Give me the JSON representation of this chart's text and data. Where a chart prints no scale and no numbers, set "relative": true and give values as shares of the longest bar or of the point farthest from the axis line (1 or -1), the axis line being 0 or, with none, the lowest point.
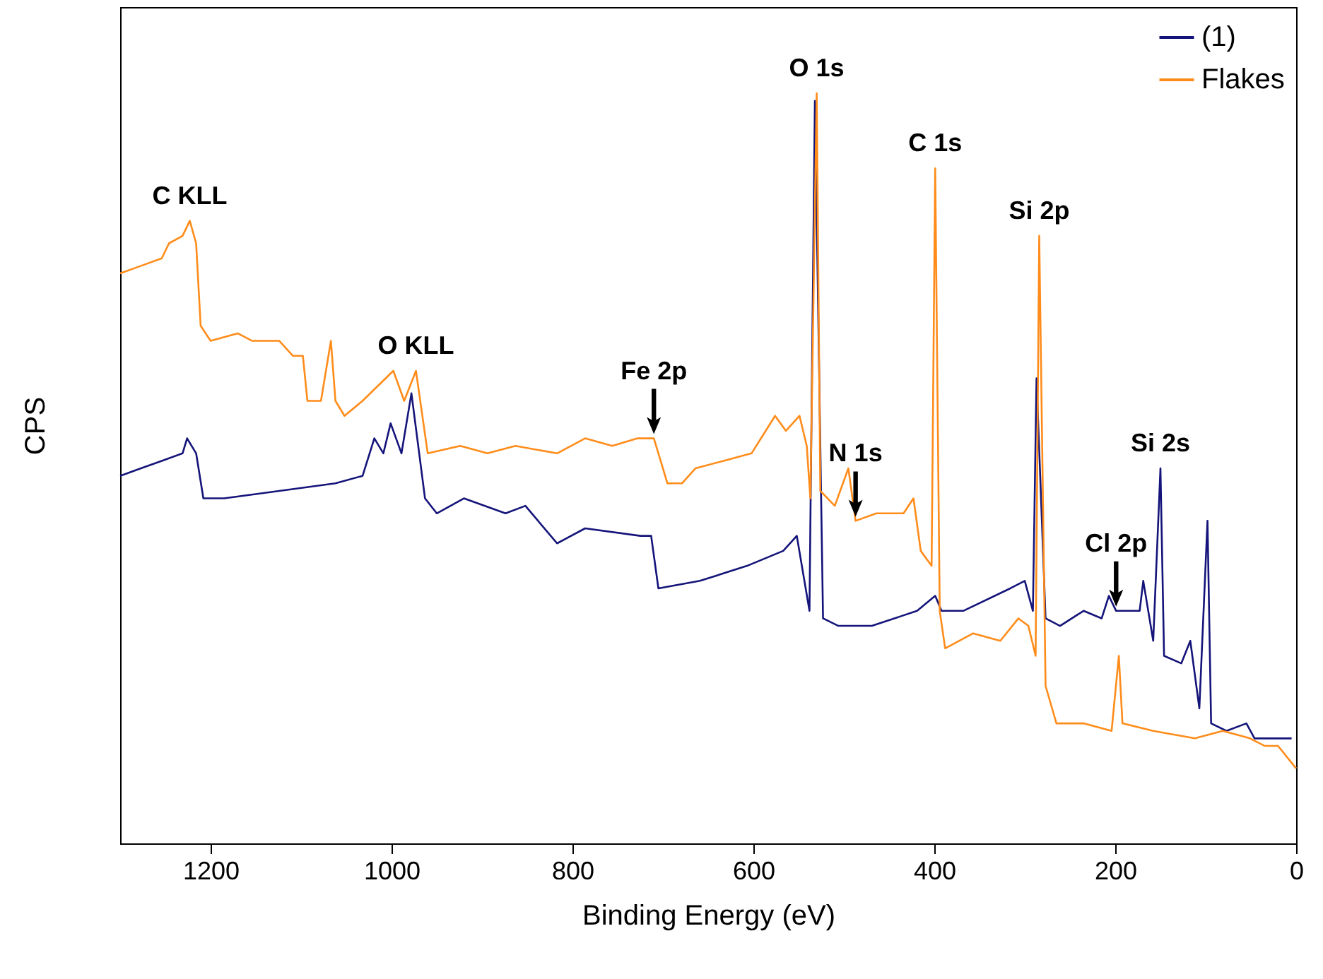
{
  "chart_data": {
    "type": "line",
    "relative": true,
    "xlabel": "Binding Energy (eV)",
    "ylabel": "CPS",
    "xlim": [
      1300,
      0
    ],
    "xticks": [
      1200,
      1000,
      800,
      600,
      400,
      200,
      0
    ],
    "legend": "top right",
    "grid": false,
    "series": [
      {
        "name": "(1)",
        "color": "#14147a",
        "x": [
          1300,
          1277,
          1254,
          1231,
          1226,
          1216,
          1208,
          1185,
          1124,
          1062,
          1032,
          1019,
          1009,
          1001,
          989,
          978,
          963,
          950,
          920,
          874,
          852,
          817,
          786,
          725,
          713,
          705,
          659,
          607,
          567,
          552,
          538,
          532,
          523,
          506,
          469,
          419,
          399,
          392,
          368,
          316,
          300,
          291,
          287,
          277,
          261,
          235,
          215,
          207,
          199,
          173,
          169,
          158,
          150,
          146,
          127,
          117,
          107,
          98,
          94,
          77,
          55,
          46,
          5
        ],
        "values": [
          0.49,
          0.5,
          0.51,
          0.52,
          0.54,
          0.52,
          0.46,
          0.46,
          0.47,
          0.48,
          0.49,
          0.54,
          0.52,
          0.56,
          0.52,
          0.6,
          0.46,
          0.44,
          0.46,
          0.44,
          0.45,
          0.4,
          0.42,
          0.41,
          0.41,
          0.34,
          0.35,
          0.37,
          0.39,
          0.41,
          0.31,
          0.99,
          0.3,
          0.29,
          0.29,
          0.31,
          0.33,
          0.31,
          0.31,
          0.34,
          0.35,
          0.31,
          0.62,
          0.3,
          0.29,
          0.31,
          0.3,
          0.33,
          0.31,
          0.31,
          0.35,
          0.27,
          0.5,
          0.25,
          0.24,
          0.27,
          0.18,
          0.43,
          0.16,
          0.15,
          0.16,
          0.14,
          0.14
        ]
      },
      {
        "name": "Flakes",
        "color": "#ff8c1a",
        "x": [
          1300,
          1277,
          1254,
          1246,
          1231,
          1223,
          1216,
          1211,
          1200,
          1170,
          1154,
          1124,
          1109,
          1098,
          1093,
          1078,
          1067,
          1062,
          1052,
          1032,
          998,
          986,
          973,
          960,
          924,
          894,
          863,
          817,
          786,
          756,
          728,
          710,
          695,
          679,
          664,
          633,
          602,
          576,
          564,
          549,
          541,
          537,
          530,
          526,
          510,
          495,
          487,
          464,
          434,
          423,
          415,
          403,
          399,
          394,
          388,
          357,
          327,
          307,
          296,
          288,
          284,
          277,
          265,
          235,
          204,
          196,
          192,
          158,
          112,
          81,
          51,
          35,
          20,
          0
        ],
        "values": [
          0.76,
          0.77,
          0.78,
          0.8,
          0.81,
          0.83,
          0.8,
          0.69,
          0.67,
          0.68,
          0.67,
          0.67,
          0.65,
          0.65,
          0.59,
          0.59,
          0.67,
          0.59,
          0.57,
          0.59,
          0.63,
          0.59,
          0.63,
          0.52,
          0.53,
          0.52,
          0.53,
          0.52,
          0.54,
          0.53,
          0.54,
          0.54,
          0.48,
          0.48,
          0.5,
          0.51,
          0.52,
          0.57,
          0.55,
          0.57,
          0.53,
          0.46,
          1.0,
          0.47,
          0.45,
          0.5,
          0.43,
          0.44,
          0.44,
          0.46,
          0.39,
          0.37,
          0.9,
          0.31,
          0.26,
          0.28,
          0.27,
          0.3,
          0.29,
          0.25,
          0.81,
          0.21,
          0.16,
          0.16,
          0.15,
          0.25,
          0.16,
          0.15,
          0.14,
          0.15,
          0.14,
          0.13,
          0.13,
          0.1
        ]
      }
    ],
    "annotations": [
      {
        "text": "C KLL",
        "x": 1223,
        "y": 0.83
      },
      {
        "text": "O KLL",
        "x": 973,
        "y": 0.63
      },
      {
        "text": "Fe 2p",
        "x": 710,
        "y": 0.54
      },
      {
        "text": "O 1s",
        "x": 530,
        "y": 1.0
      },
      {
        "text": "N 1s",
        "x": 487,
        "y": 0.43
      },
      {
        "text": "C 1s",
        "x": 399,
        "y": 0.9
      },
      {
        "text": "Si 2p",
        "x": 284,
        "y": 0.81
      },
      {
        "text": "Cl 2p",
        "x": 199,
        "y": 0.31
      },
      {
        "text": "Si 2s",
        "x": 150,
        "y": 0.5
      }
    ]
  }
}
